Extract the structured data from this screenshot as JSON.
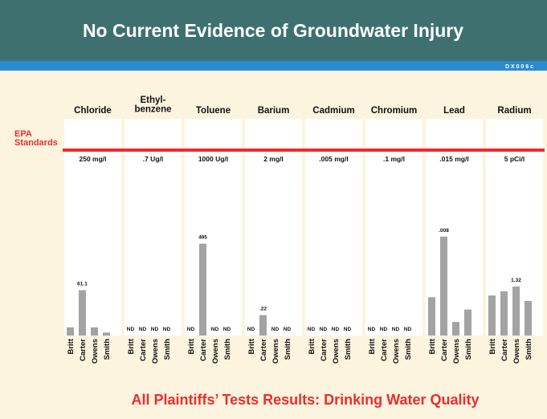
{
  "title": "No Current Evidence of Groundwater Injury",
  "exhibit": "D X  0 0 6 c",
  "standards_label": "EPA\nStandards",
  "footer": "All Plaintiffs’ Tests Results:  Drinking Water Quality",
  "bar_color": "#a3a3a3",
  "standard_color": "#ec2d2d",
  "chart_data": [
    {
      "type": "bar",
      "title": "Chloride",
      "categories": [
        "Britt",
        "Carter",
        "Owens",
        "Smith"
      ],
      "values": [
        11,
        61.1,
        11,
        4
      ],
      "value_labels": [
        null,
        "61.1",
        null,
        null
      ],
      "ylim": [
        0,
        250
      ],
      "standard": {
        "value": 250,
        "label": "250 mg/l"
      }
    },
    {
      "type": "bar",
      "title": "Ethyl-\nbenzene",
      "categories": [
        "Britt",
        "Carter",
        "Owens",
        "Smith"
      ],
      "values": [
        null,
        null,
        null,
        null
      ],
      "value_labels": [
        "ND",
        "ND",
        "ND",
        "ND"
      ],
      "ylim": [
        0,
        0.7
      ],
      "standard": {
        "value": 0.7,
        "label": ".7 Ug/l"
      }
    },
    {
      "type": "bar",
      "title": "Toluene",
      "categories": [
        "Britt",
        "Carter",
        "Owens",
        "Smith"
      ],
      "values": [
        null,
        495,
        null,
        null
      ],
      "value_labels": [
        "ND",
        "495",
        "ND",
        "ND"
      ],
      "ylim": [
        0,
        1000
      ],
      "standard": {
        "value": 1000,
        "label": "1000 Ug/l"
      }
    },
    {
      "type": "bar",
      "title": "Barium",
      "categories": [
        "Britt",
        "Carter",
        "Owens",
        "Smith"
      ],
      "values": [
        null,
        0.22,
        null,
        null
      ],
      "value_labels": [
        "ND",
        ".22",
        "ND",
        "ND"
      ],
      "ylim": [
        0,
        2
      ],
      "standard": {
        "value": 2,
        "label": "2 mg/l"
      }
    },
    {
      "type": "bar",
      "title": "Cadmium",
      "categories": [
        "Britt",
        "Carter",
        "Owens",
        "Smith"
      ],
      "values": [
        null,
        null,
        null,
        null
      ],
      "value_labels": [
        "ND",
        "ND",
        "ND",
        "ND"
      ],
      "ylim": [
        0,
        0.005
      ],
      "standard": {
        "value": 0.005,
        "label": ".005 mg/l"
      }
    },
    {
      "type": "bar",
      "title": "Chromium",
      "categories": [
        "Britt",
        "Carter",
        "Owens",
        "Smith"
      ],
      "values": [
        null,
        null,
        null,
        null
      ],
      "value_labels": [
        "ND",
        "ND",
        "ND",
        "ND"
      ],
      "ylim": [
        0,
        0.1
      ],
      "standard": {
        "value": 0.1,
        "label": ".1 mg/l"
      }
    },
    {
      "type": "bar",
      "title": "Lead",
      "categories": [
        "Britt",
        "Carter",
        "Owens",
        "Smith"
      ],
      "values": [
        0.0031,
        0.008,
        0.0011,
        0.0021
      ],
      "value_labels": [
        null,
        ".008",
        null,
        null
      ],
      "ylim": [
        0,
        0.015
      ],
      "standard": {
        "value": 0.015,
        "label": ".015 mg/l"
      }
    },
    {
      "type": "bar",
      "title": "Radium",
      "categories": [
        "Britt",
        "Carter",
        "Owens",
        "Smith"
      ],
      "values": [
        1.08,
        1.19,
        1.32,
        0.93
      ],
      "value_labels": [
        null,
        null,
        "1.32",
        null
      ],
      "ylim": [
        0,
        5
      ],
      "standard": {
        "value": 5,
        "label": "5 pCi/l"
      }
    }
  ]
}
